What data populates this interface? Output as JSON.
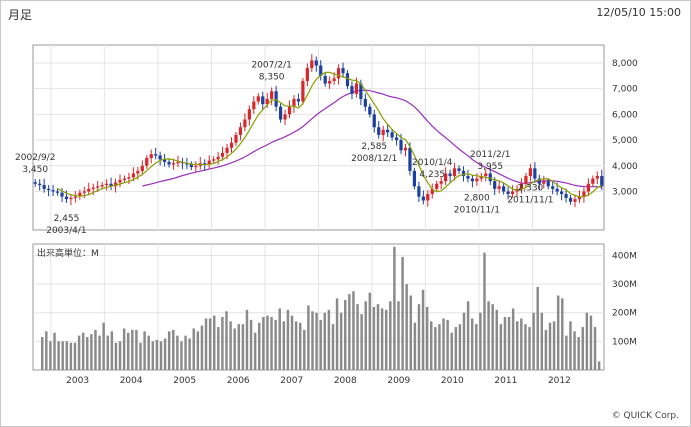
{
  "header": {
    "period_label": "月足",
    "timestamp": "12/05/10 15:00"
  },
  "copyright": "© QUICK Corp.",
  "chart_data": [
    {
      "type": "candlestick",
      "title": "",
      "x_tick_labels": [
        "2003",
        "2004",
        "2005",
        "2006",
        "2007",
        "2008",
        "2009",
        "2010",
        "2011",
        "2012"
      ],
      "y_tick_labels": [
        "3,000",
        "4,000",
        "5,000",
        "6,000",
        "7,000",
        "8,000"
      ],
      "ylim": [
        1500,
        8700
      ],
      "series": [
        {
          "kind": "close",
          "values": [
            3300,
            3250,
            3100,
            3050,
            3000,
            2950,
            2800,
            2700,
            2750,
            2800,
            2950,
            3000,
            3100,
            3150,
            3200,
            3250,
            3300,
            3200,
            3350,
            3450,
            3500,
            3550,
            3700,
            3800,
            4000,
            4300,
            4450,
            4400,
            4250,
            4150,
            4050,
            4100,
            4150,
            4100,
            4050,
            3950,
            4000,
            4100,
            4050,
            4200,
            4250,
            4350,
            4500,
            4700,
            4900,
            5200,
            5500,
            5800,
            6200,
            6500,
            6700,
            6400,
            6600,
            6900,
            6300,
            5800,
            6000,
            6300,
            6600,
            6500,
            7300,
            7800,
            8100,
            7900,
            7500,
            7200,
            7300,
            7400,
            7800,
            7600,
            7100,
            6800,
            7200,
            6600,
            6300,
            6000,
            5500,
            5200,
            5400,
            5300,
            5100,
            5000,
            4600,
            4700,
            3800,
            3200,
            2800,
            2650,
            2900,
            3100,
            3300,
            3400,
            3700,
            3600,
            3900,
            3800,
            3600,
            3500,
            3400,
            3500,
            3600,
            3700,
            3400,
            3100,
            3200,
            3000,
            2900,
            3000,
            3100,
            3300,
            3600,
            3900,
            3500,
            3300,
            3400,
            3200,
            3100,
            3000,
            2900,
            2750,
            2600,
            2700,
            2800,
            3000,
            3300,
            3500,
            3600,
            3200
          ]
        },
        {
          "kind": "ma_short",
          "color": "#8aa000"
        },
        {
          "kind": "ma_long",
          "color": "#9a2fbe"
        }
      ],
      "annotations": [
        {
          "text": "2002/9/2",
          "x": 0
        },
        {
          "text": "3,450",
          "x": 0
        },
        {
          "text": "2,455",
          "x": 7
        },
        {
          "text": "2003/4/1",
          "x": 7
        },
        {
          "text": "2007/2/1",
          "x": 53
        },
        {
          "text": "8,350",
          "x": 53
        },
        {
          "text": "2,585",
          "x": 76
        },
        {
          "text": "2008/12/1",
          "x": 76
        },
        {
          "text": "2010/1/4",
          "x": 89
        },
        {
          "text": "4,235",
          "x": 89
        },
        {
          "text": "2011/2/1",
          "x": 102
        },
        {
          "text": "3,955",
          "x": 102
        },
        {
          "text": "2,800",
          "x": 99
        },
        {
          "text": "2010/11/1",
          "x": 99
        },
        {
          "text": "2,330",
          "x": 111
        },
        {
          "text": "2011/11/1",
          "x": 111
        }
      ]
    },
    {
      "type": "bar",
      "title": "出来高単位：M",
      "y_tick_labels": [
        "100M",
        "200M",
        "300M",
        "400M"
      ],
      "ylim": [
        0,
        440
      ],
      "values": [
        115,
        135,
        100,
        130,
        100,
        100,
        100,
        95,
        95,
        120,
        130,
        115,
        125,
        140,
        120,
        165,
        120,
        135,
        95,
        100,
        145,
        130,
        140,
        140,
        95,
        135,
        120,
        100,
        105,
        100,
        110,
        135,
        140,
        120,
        100,
        120,
        110,
        145,
        135,
        155,
        180,
        180,
        190,
        150,
        185,
        205,
        170,
        145,
        160,
        160,
        210,
        175,
        130,
        165,
        185,
        190,
        185,
        175,
        215,
        170,
        210,
        190,
        170,
        165,
        140,
        225,
        205,
        200,
        175,
        200,
        210,
        160,
        250,
        200,
        245,
        265,
        275,
        230,
        195,
        240,
        270,
        220,
        230,
        215,
        210,
        240,
        430,
        240,
        395,
        300,
        260,
        165,
        230,
        280,
        220,
        170,
        150,
        160,
        180,
        175,
        130,
        150,
        160,
        200,
        240,
        180,
        160,
        200,
        410,
        240,
        230,
        210,
        160,
        185,
        185,
        215,
        170,
        180,
        160,
        150,
        200,
        290,
        200,
        140,
        165,
        170,
        260,
        250,
        120,
        170,
        135,
        115,
        150,
        200,
        190,
        150,
        30
      ]
    }
  ]
}
